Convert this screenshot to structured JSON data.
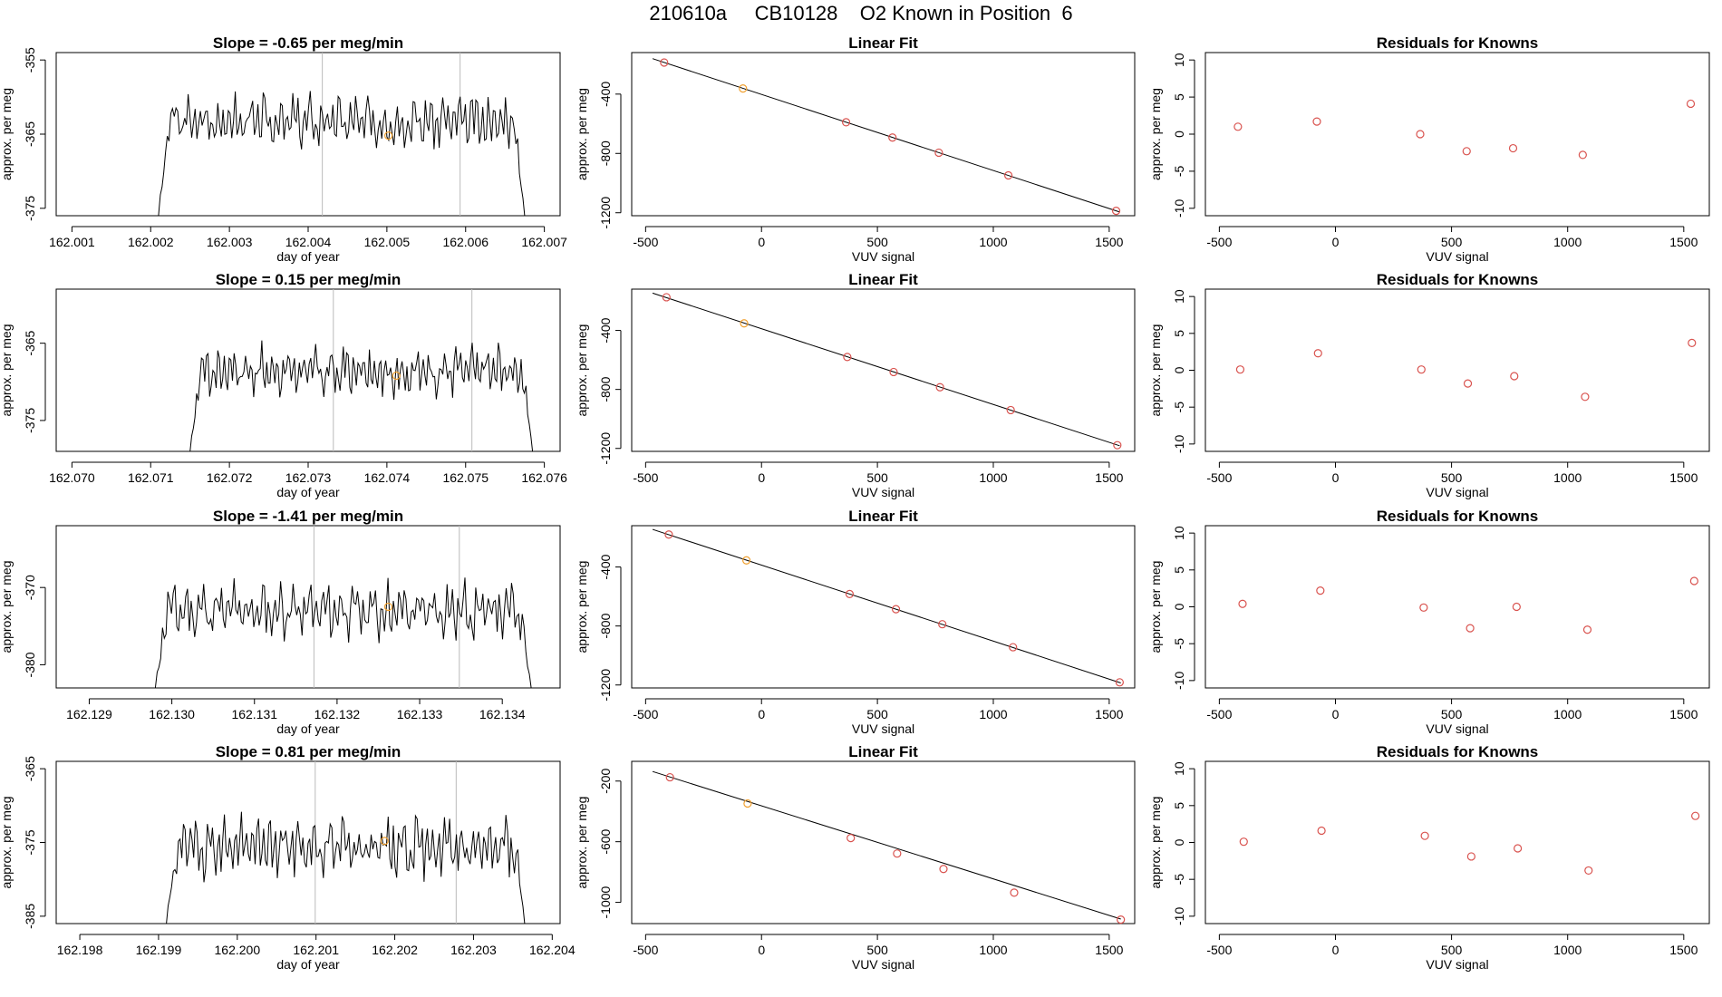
{
  "page": {
    "title": "210610a     CB10128    O2 Known in Position  6"
  },
  "colors": {
    "axis": "#000000",
    "trace": "#000000",
    "points": "#d9534f",
    "known": "#f0a030",
    "marker": "#bbbbbb",
    "background": "#ffffff"
  },
  "chart_data": [
    {
      "panel": "trace",
      "row": 1,
      "type": "line",
      "title": "Slope =  -0.65  per meg/min",
      "xlabel": "day of year",
      "ylabel": "approx. per meg",
      "xticks": [
        {
          "v": 162.001,
          "label": "162.001"
        },
        {
          "v": 162.002,
          "label": "162.002"
        },
        {
          "v": 162.003,
          "label": "162.003"
        },
        {
          "v": 162.004,
          "label": "162.004"
        },
        {
          "v": 162.005,
          "label": "162.005"
        },
        {
          "v": 162.006,
          "label": "162.006"
        },
        {
          "v": 162.007,
          "label": "162.007"
        }
      ],
      "yticks": [
        {
          "v": -355,
          "label": "-355"
        },
        {
          "v": -365,
          "label": "-365"
        },
        {
          "v": -375,
          "label": "-375"
        }
      ],
      "xlim": [
        162.0008,
        162.0072
      ],
      "ylim": [
        -376,
        -354
      ],
      "vlines": [
        162.00418,
        162.00593
      ],
      "known_point": {
        "x": 162.00502,
        "y": -365.2
      },
      "trace": {
        "x0": 162.0021,
        "x1": 162.00675,
        "base": -363.3,
        "amp": 3.5,
        "seed": 3
      }
    },
    {
      "panel": "linear",
      "row": 1,
      "type": "scatter",
      "title": "Linear Fit",
      "xlabel": "VUV signal",
      "ylabel": "approx. per meg",
      "xticks": [
        {
          "v": -500,
          "label": "-500"
        },
        {
          "v": 0,
          "label": "0"
        },
        {
          "v": 500,
          "label": "500"
        },
        {
          "v": 1000,
          "label": "1000"
        },
        {
          "v": 1500,
          "label": "1500"
        }
      ],
      "yticks": [
        {
          "v": -400,
          "label": "-400"
        },
        {
          "v": -800,
          "label": "-800"
        },
        {
          "v": -1200,
          "label": "-1200"
        }
      ],
      "xlim": [
        -560,
        1610
      ],
      "ylim": [
        -1220,
        -120
      ],
      "points": [
        {
          "x": -420,
          "y": -187,
          "known": false
        },
        {
          "x": -80,
          "y": -362,
          "known": true
        },
        {
          "x": 365,
          "y": -590,
          "known": false
        },
        {
          "x": 565,
          "y": -693,
          "known": false
        },
        {
          "x": 765,
          "y": -795,
          "known": false
        },
        {
          "x": 1065,
          "y": -948,
          "known": false
        },
        {
          "x": 1530,
          "y": -1187,
          "known": false
        }
      ],
      "fit": {
        "x": [
          -470,
          1545
        ],
        "y": [
          -161,
          -1195
        ]
      }
    },
    {
      "panel": "residuals",
      "row": 1,
      "type": "scatter",
      "title": "Residuals for Knowns",
      "xlabel": "VUV signal",
      "ylabel": "approx. per meg",
      "xticks": [
        {
          "v": -500,
          "label": "-500"
        },
        {
          "v": 0,
          "label": "0"
        },
        {
          "v": 500,
          "label": "500"
        },
        {
          "v": 1000,
          "label": "1000"
        },
        {
          "v": 1500,
          "label": "1500"
        }
      ],
      "yticks": [
        {
          "v": 10,
          "label": "10"
        },
        {
          "v": 5,
          "label": "5"
        },
        {
          "v": 0,
          "label": "0"
        },
        {
          "v": -5,
          "label": "-5"
        },
        {
          "v": -10,
          "label": "-10"
        }
      ],
      "xlim": [
        -560,
        1610
      ],
      "ylim": [
        -11,
        11
      ],
      "points": [
        {
          "x": -420,
          "y": 1.0
        },
        {
          "x": -80,
          "y": 1.7
        },
        {
          "x": 365,
          "y": 0.0
        },
        {
          "x": 565,
          "y": -2.3
        },
        {
          "x": 765,
          "y": -1.9
        },
        {
          "x": 1065,
          "y": -2.8
        },
        {
          "x": 1530,
          "y": 4.1
        }
      ]
    },
    {
      "panel": "trace",
      "row": 2,
      "type": "line",
      "title": "Slope =  0.15  per meg/min",
      "xlabel": "day of year",
      "ylabel": "approx. per meg",
      "xticks": [
        {
          "v": 162.07,
          "label": "162.070"
        },
        {
          "v": 162.071,
          "label": "162.071"
        },
        {
          "v": 162.072,
          "label": "162.072"
        },
        {
          "v": 162.073,
          "label": "162.073"
        },
        {
          "v": 162.074,
          "label": "162.074"
        },
        {
          "v": 162.075,
          "label": "162.075"
        },
        {
          "v": 162.076,
          "label": "162.076"
        }
      ],
      "yticks": [
        {
          "v": -365,
          "label": "-365"
        },
        {
          "v": -375,
          "label": "-375"
        }
      ],
      "xlim": [
        162.0698,
        162.0762
      ],
      "ylim": [
        -379,
        -358
      ],
      "vlines": [
        162.07332,
        162.07508
      ],
      "known_point": {
        "x": 162.07412,
        "y": -369.2
      },
      "trace": {
        "x0": 162.0715,
        "x1": 162.07585,
        "base": -368.6,
        "amp": 3.4,
        "seed": 7
      }
    },
    {
      "panel": "linear",
      "row": 2,
      "type": "scatter",
      "title": "Linear Fit",
      "xlabel": "VUV signal",
      "ylabel": "approx. per meg",
      "xticks": [
        {
          "v": -500,
          "label": "-500"
        },
        {
          "v": 0,
          "label": "0"
        },
        {
          "v": 500,
          "label": "500"
        },
        {
          "v": 1000,
          "label": "1000"
        },
        {
          "v": 1500,
          "label": "1500"
        }
      ],
      "yticks": [
        {
          "v": -400,
          "label": "-400"
        },
        {
          "v": -800,
          "label": "-800"
        },
        {
          "v": -1200,
          "label": "-1200"
        }
      ],
      "xlim": [
        -560,
        1610
      ],
      "ylim": [
        -1220,
        -120
      ],
      "points": [
        {
          "x": -410,
          "y": -175,
          "known": false
        },
        {
          "x": -75,
          "y": -352,
          "known": true
        },
        {
          "x": 370,
          "y": -580,
          "known": false
        },
        {
          "x": 570,
          "y": -682,
          "known": false
        },
        {
          "x": 770,
          "y": -785,
          "known": false
        },
        {
          "x": 1075,
          "y": -940,
          "known": false
        },
        {
          "x": 1535,
          "y": -1178,
          "known": false
        }
      ],
      "fit": {
        "x": [
          -470,
          1545
        ],
        "y": [
          -147,
          -1182
        ]
      }
    },
    {
      "panel": "residuals",
      "row": 2,
      "type": "scatter",
      "title": "Residuals for Knowns",
      "xlabel": "VUV signal",
      "ylabel": "approx. per meg",
      "xticks": [
        {
          "v": -500,
          "label": "-500"
        },
        {
          "v": 0,
          "label": "0"
        },
        {
          "v": 500,
          "label": "500"
        },
        {
          "v": 1000,
          "label": "1000"
        },
        {
          "v": 1500,
          "label": "1500"
        }
      ],
      "yticks": [
        {
          "v": 10,
          "label": "10"
        },
        {
          "v": 5,
          "label": "5"
        },
        {
          "v": 0,
          "label": "0"
        },
        {
          "v": -5,
          "label": "-5"
        },
        {
          "v": -10,
          "label": "-10"
        }
      ],
      "xlim": [
        -560,
        1610
      ],
      "ylim": [
        -11,
        11
      ],
      "points": [
        {
          "x": -410,
          "y": 0.1
        },
        {
          "x": -75,
          "y": 2.3
        },
        {
          "x": 370,
          "y": 0.1
        },
        {
          "x": 570,
          "y": -1.8
        },
        {
          "x": 770,
          "y": -0.8
        },
        {
          "x": 1075,
          "y": -3.6
        },
        {
          "x": 1535,
          "y": 3.7
        }
      ]
    },
    {
      "panel": "trace",
      "row": 3,
      "type": "line",
      "title": "Slope =  -1.41  per meg/min",
      "xlabel": "day of year",
      "ylabel": "approx. per meg",
      "xticks": [
        {
          "v": 162.129,
          "label": "162.129"
        },
        {
          "v": 162.13,
          "label": "162.130"
        },
        {
          "v": 162.131,
          "label": "162.131"
        },
        {
          "v": 162.132,
          "label": "162.132"
        },
        {
          "v": 162.133,
          "label": "162.133"
        },
        {
          "v": 162.134,
          "label": "162.134"
        }
      ],
      "yticks": [
        {
          "v": -370,
          "label": "-370"
        },
        {
          "v": -380,
          "label": "-380"
        }
      ],
      "xlim": [
        162.1286,
        162.1347
      ],
      "ylim": [
        -383,
        -362
      ],
      "vlines": [
        162.13172,
        162.13348
      ],
      "known_point": {
        "x": 162.13262,
        "y": -372.5
      },
      "trace": {
        "x0": 162.1298,
        "x1": 162.13435,
        "base": -373.0,
        "amp": 3.6,
        "seed": 11
      }
    },
    {
      "panel": "linear",
      "row": 3,
      "type": "scatter",
      "title": "Linear Fit",
      "xlabel": "VUV signal",
      "ylabel": "approx. per meg",
      "xticks": [
        {
          "v": -500,
          "label": "-500"
        },
        {
          "v": 0,
          "label": "0"
        },
        {
          "v": 500,
          "label": "500"
        },
        {
          "v": 1000,
          "label": "1000"
        },
        {
          "v": 1500,
          "label": "1500"
        }
      ],
      "yticks": [
        {
          "v": -400,
          "label": "-400"
        },
        {
          "v": -800,
          "label": "-800"
        },
        {
          "v": -1200,
          "label": "-1200"
        }
      ],
      "xlim": [
        -560,
        1610
      ],
      "ylim": [
        -1220,
        -120
      ],
      "points": [
        {
          "x": -400,
          "y": -180,
          "known": false
        },
        {
          "x": -65,
          "y": -355,
          "known": true
        },
        {
          "x": 380,
          "y": -583,
          "known": false
        },
        {
          "x": 580,
          "y": -686,
          "known": false
        },
        {
          "x": 780,
          "y": -788,
          "known": false
        },
        {
          "x": 1085,
          "y": -944,
          "known": false
        },
        {
          "x": 1545,
          "y": -1182,
          "known": false
        }
      ],
      "fit": {
        "x": [
          -470,
          1550
        ],
        "y": [
          -145,
          -1186
        ]
      }
    },
    {
      "panel": "residuals",
      "row": 3,
      "type": "scatter",
      "title": "Residuals for Knowns",
      "xlabel": "VUV signal",
      "ylabel": "approx. per meg",
      "xticks": [
        {
          "v": -500,
          "label": "-500"
        },
        {
          "v": 0,
          "label": "0"
        },
        {
          "v": 500,
          "label": "500"
        },
        {
          "v": 1000,
          "label": "1000"
        },
        {
          "v": 1500,
          "label": "1500"
        }
      ],
      "yticks": [
        {
          "v": 10,
          "label": "10"
        },
        {
          "v": 5,
          "label": "5"
        },
        {
          "v": 0,
          "label": "0"
        },
        {
          "v": -5,
          "label": "-5"
        },
        {
          "v": -10,
          "label": "-10"
        }
      ],
      "xlim": [
        -560,
        1610
      ],
      "ylim": [
        -11,
        11
      ],
      "points": [
        {
          "x": -400,
          "y": 0.4
        },
        {
          "x": -65,
          "y": 2.2
        },
        {
          "x": 380,
          "y": -0.1
        },
        {
          "x": 580,
          "y": -2.9
        },
        {
          "x": 780,
          "y": 0.0
        },
        {
          "x": 1085,
          "y": -3.1
        },
        {
          "x": 1545,
          "y": 3.5
        }
      ]
    },
    {
      "panel": "trace",
      "row": 4,
      "type": "line",
      "title": "Slope =  0.81  per meg/min",
      "xlabel": "day of year",
      "ylabel": "approx. per meg",
      "xticks": [
        {
          "v": 162.198,
          "label": "162.198"
        },
        {
          "v": 162.199,
          "label": "162.199"
        },
        {
          "v": 162.2,
          "label": "162.200"
        },
        {
          "v": 162.201,
          "label": "162.201"
        },
        {
          "v": 162.202,
          "label": "162.202"
        },
        {
          "v": 162.203,
          "label": "162.203"
        },
        {
          "v": 162.204,
          "label": "162.204"
        }
      ],
      "yticks": [
        {
          "v": -365,
          "label": "-365"
        },
        {
          "v": -375,
          "label": "-375"
        },
        {
          "v": -385,
          "label": "-385"
        }
      ],
      "xlim": [
        162.1977,
        162.2041
      ],
      "ylim": [
        -386,
        -364
      ],
      "vlines": [
        162.20099,
        162.20278
      ],
      "known_point": {
        "x": 162.20187,
        "y": -374.8
      },
      "trace": {
        "x0": 162.1991,
        "x1": 162.20365,
        "base": -375.5,
        "amp": 4.0,
        "seed": 19
      }
    },
    {
      "panel": "linear",
      "row": 4,
      "type": "scatter",
      "title": "Linear Fit",
      "xlabel": "VUV signal",
      "ylabel": "approx. per meg",
      "xticks": [
        {
          "v": -500,
          "label": "-500"
        },
        {
          "v": 0,
          "label": "0"
        },
        {
          "v": 500,
          "label": "500"
        },
        {
          "v": 1000,
          "label": "1000"
        },
        {
          "v": 1500,
          "label": "1500"
        }
      ],
      "yticks": [
        {
          "v": -200,
          "label": "-200"
        },
        {
          "v": -600,
          "label": "-600"
        },
        {
          "v": -1000,
          "label": "-1000"
        }
      ],
      "xlim": [
        -560,
        1610
      ],
      "ylim": [
        -1140,
        -70
      ],
      "points": [
        {
          "x": -395,
          "y": -175,
          "known": false
        },
        {
          "x": -60,
          "y": -348,
          "known": true
        },
        {
          "x": 385,
          "y": -576,
          "known": false
        },
        {
          "x": 585,
          "y": -678,
          "known": false
        },
        {
          "x": 785,
          "y": -780,
          "known": false
        },
        {
          "x": 1090,
          "y": -936,
          "known": false
        },
        {
          "x": 1550,
          "y": -1114,
          "known": false
        }
      ],
      "fit": {
        "x": [
          -470,
          1550
        ],
        "y": [
          -137,
          -1110
        ]
      }
    },
    {
      "panel": "residuals",
      "row": 4,
      "type": "scatter",
      "title": "Residuals for Knowns",
      "xlabel": "VUV signal",
      "ylabel": "approx. per meg",
      "xticks": [
        {
          "v": -500,
          "label": "-500"
        },
        {
          "v": 0,
          "label": "0"
        },
        {
          "v": 500,
          "label": "500"
        },
        {
          "v": 1000,
          "label": "1000"
        },
        {
          "v": 1500,
          "label": "1500"
        }
      ],
      "yticks": [
        {
          "v": 10,
          "label": "10"
        },
        {
          "v": 5,
          "label": "5"
        },
        {
          "v": 0,
          "label": "0"
        },
        {
          "v": -5,
          "label": "-5"
        },
        {
          "v": -10,
          "label": "-10"
        }
      ],
      "xlim": [
        -560,
        1610
      ],
      "ylim": [
        -11,
        11
      ],
      "points": [
        {
          "x": -395,
          "y": 0.1
        },
        {
          "x": -60,
          "y": 1.6
        },
        {
          "x": 385,
          "y": 0.9
        },
        {
          "x": 585,
          "y": -1.9
        },
        {
          "x": 785,
          "y": -0.8
        },
        {
          "x": 1090,
          "y": -3.8
        },
        {
          "x": 1550,
          "y": 3.6
        }
      ]
    }
  ]
}
